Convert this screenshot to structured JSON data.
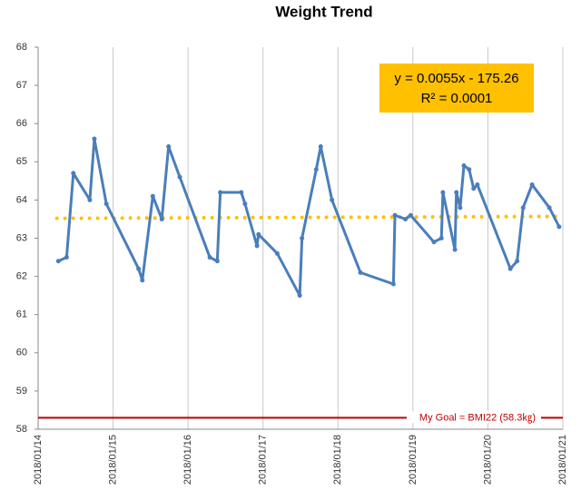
{
  "chart_data": {
    "type": "line",
    "title": "Weight Trend",
    "color": "#4a7ebb",
    "x": [
      43114.27,
      43114.38,
      43114.47,
      43114.69,
      43114.75,
      43114.91,
      43115.34,
      43115.39,
      43115.53,
      43115.65,
      43115.74,
      43115.89,
      43116.29,
      43116.39,
      43116.43,
      43116.71,
      43116.76,
      43116.92,
      43116.94,
      43117.19,
      43117.49,
      43117.52,
      43117.71,
      43117.77,
      43117.92,
      43118.3,
      43118.74,
      43118.76,
      43118.9,
      43118.97,
      43119.28,
      43119.38,
      43119.4,
      43119.56,
      43119.58,
      43119.63,
      43119.68,
      43119.75,
      43119.81,
      43119.86,
      43120.3,
      43120.39,
      43120.47,
      43120.59,
      43120.82,
      43120.95
    ],
    "values": [
      62.4,
      62.5,
      64.7,
      64.0,
      65.6,
      63.9,
      62.2,
      61.9,
      64.1,
      63.5,
      65.4,
      64.6,
      62.5,
      62.4,
      64.2,
      64.2,
      63.9,
      62.8,
      63.1,
      62.6,
      61.5,
      63.0,
      64.8,
      65.4,
      64.0,
      62.1,
      61.8,
      63.6,
      63.5,
      63.6,
      62.9,
      63.0,
      64.2,
      62.7,
      64.2,
      63.8,
      64.9,
      64.8,
      64.3,
      64.4,
      62.2,
      62.4,
      63.8,
      64.4,
      63.8,
      63.3
    ],
    "xlim": [
      43114,
      43121
    ],
    "xticks": [
      {
        "value": 43114,
        "label": "2018/01/14"
      },
      {
        "value": 43115,
        "label": "2018/01/15"
      },
      {
        "value": 43116,
        "label": "2018/01/16"
      },
      {
        "value": 43117,
        "label": "2018/01/17"
      },
      {
        "value": 43118,
        "label": "2018/01/18"
      },
      {
        "value": 43119,
        "label": "2018/01/19"
      },
      {
        "value": 43120,
        "label": "2018/01/20"
      },
      {
        "value": 43121,
        "label": "2018/01/21"
      }
    ],
    "ylim": [
      58,
      68
    ],
    "yticks": [
      58,
      59,
      60,
      61,
      62,
      63,
      64,
      65,
      66,
      67,
      68
    ],
    "grid": "x",
    "trendline": {
      "color": "#ffc000",
      "x": [
        43114.25,
        43121
      ],
      "values": [
        63.52,
        63.57
      ]
    },
    "equation": {
      "color": "#ffc000",
      "lines": [
        "y = 0.0055x - 175.26",
        "R² = 0.0001"
      ]
    },
    "goal": {
      "value": 58.3,
      "label": "My Goal = BMI22 (58.3㎏)",
      "color": "#c00000"
    }
  }
}
